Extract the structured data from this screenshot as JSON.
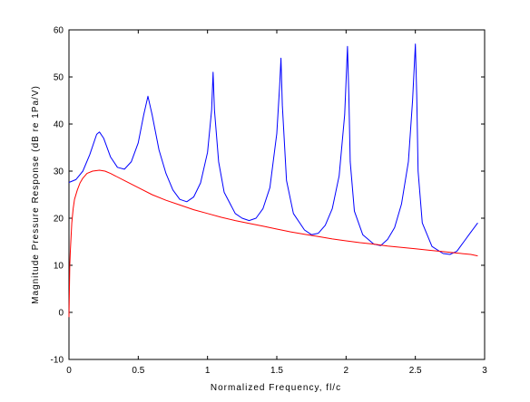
{
  "chart_data": {
    "type": "line",
    "title": "",
    "xlabel": "Normalized Frequency, fl/c",
    "ylabel": "Magnitude Pressure Response (dB re 1Pa/V)",
    "xlim": [
      0,
      3
    ],
    "ylim": [
      -10,
      60
    ],
    "xticks": [
      "0",
      "0.5",
      "1",
      "1.5",
      "2",
      "2.5",
      "3"
    ],
    "yticks": [
      "-10",
      "0",
      "10",
      "20",
      "30",
      "40",
      "50",
      "60"
    ],
    "grid": false,
    "legend": "none",
    "series": [
      {
        "color": "#0000ff",
        "x": [
          0,
          0.05,
          0.1,
          0.15,
          0.2,
          0.22,
          0.25,
          0.3,
          0.35,
          0.4,
          0.45,
          0.5,
          0.54,
          0.57,
          0.6,
          0.65,
          0.7,
          0.75,
          0.8,
          0.85,
          0.9,
          0.95,
          1.0,
          1.03,
          1.04,
          1.05,
          1.08,
          1.12,
          1.2,
          1.25,
          1.3,
          1.35,
          1.4,
          1.45,
          1.5,
          1.52,
          1.53,
          1.54,
          1.57,
          1.62,
          1.7,
          1.75,
          1.8,
          1.85,
          1.9,
          1.95,
          1.99,
          2.01,
          2.02,
          2.03,
          2.06,
          2.12,
          2.2,
          2.25,
          2.3,
          2.35,
          2.4,
          2.45,
          2.48,
          2.5,
          2.51,
          2.52,
          2.55,
          2.62,
          2.7,
          2.75,
          2.8,
          2.85,
          2.9,
          2.95
        ],
        "y": [
          27.6,
          28.2,
          30.0,
          33.5,
          37.8,
          38.3,
          37.0,
          33.0,
          30.8,
          30.4,
          32.0,
          36.0,
          42.0,
          45.9,
          42.0,
          34.5,
          29.5,
          26.0,
          24.0,
          23.5,
          24.5,
          27.5,
          34.0,
          43.0,
          51.0,
          43.0,
          32.0,
          25.5,
          21.0,
          20.0,
          19.5,
          20.0,
          22.0,
          26.5,
          38.0,
          48.0,
          54.0,
          44.0,
          28.0,
          21.0,
          17.5,
          16.5,
          16.8,
          18.5,
          22.0,
          29.0,
          42.0,
          56.5,
          46.0,
          32.0,
          21.5,
          16.5,
          14.5,
          14.2,
          15.5,
          18.0,
          23.0,
          32.0,
          45.0,
          57.0,
          46.0,
          30.0,
          19.0,
          14.0,
          12.5,
          12.3,
          13.0,
          15.0,
          17.0,
          19.0
        ]
      },
      {
        "color": "#ff0000",
        "x": [
          0,
          0.003,
          0.006,
          0.01,
          0.015,
          0.02,
          0.03,
          0.04,
          0.06,
          0.08,
          0.1,
          0.13,
          0.17,
          0.22,
          0.26,
          0.3,
          0.4,
          0.5,
          0.6,
          0.7,
          0.8,
          0.9,
          1.0,
          1.1,
          1.2,
          1.3,
          1.4,
          1.5,
          1.6,
          1.7,
          1.8,
          1.9,
          2.0,
          2.1,
          2.2,
          2.3,
          2.4,
          2.5,
          2.6,
          2.7,
          2.8,
          2.9,
          2.95
        ],
        "y": [
          -1.0,
          5.0,
          10.0,
          13.0,
          16.0,
          19.0,
          22.0,
          24.0,
          26.0,
          27.5,
          28.5,
          29.5,
          30.0,
          30.2,
          30.0,
          29.5,
          28.0,
          26.5,
          25.0,
          23.8,
          22.8,
          21.8,
          21.0,
          20.2,
          19.5,
          18.9,
          18.3,
          17.7,
          17.1,
          16.6,
          16.1,
          15.6,
          15.2,
          14.8,
          14.5,
          14.1,
          13.8,
          13.5,
          13.2,
          12.9,
          12.6,
          12.3,
          12.0
        ]
      }
    ]
  }
}
